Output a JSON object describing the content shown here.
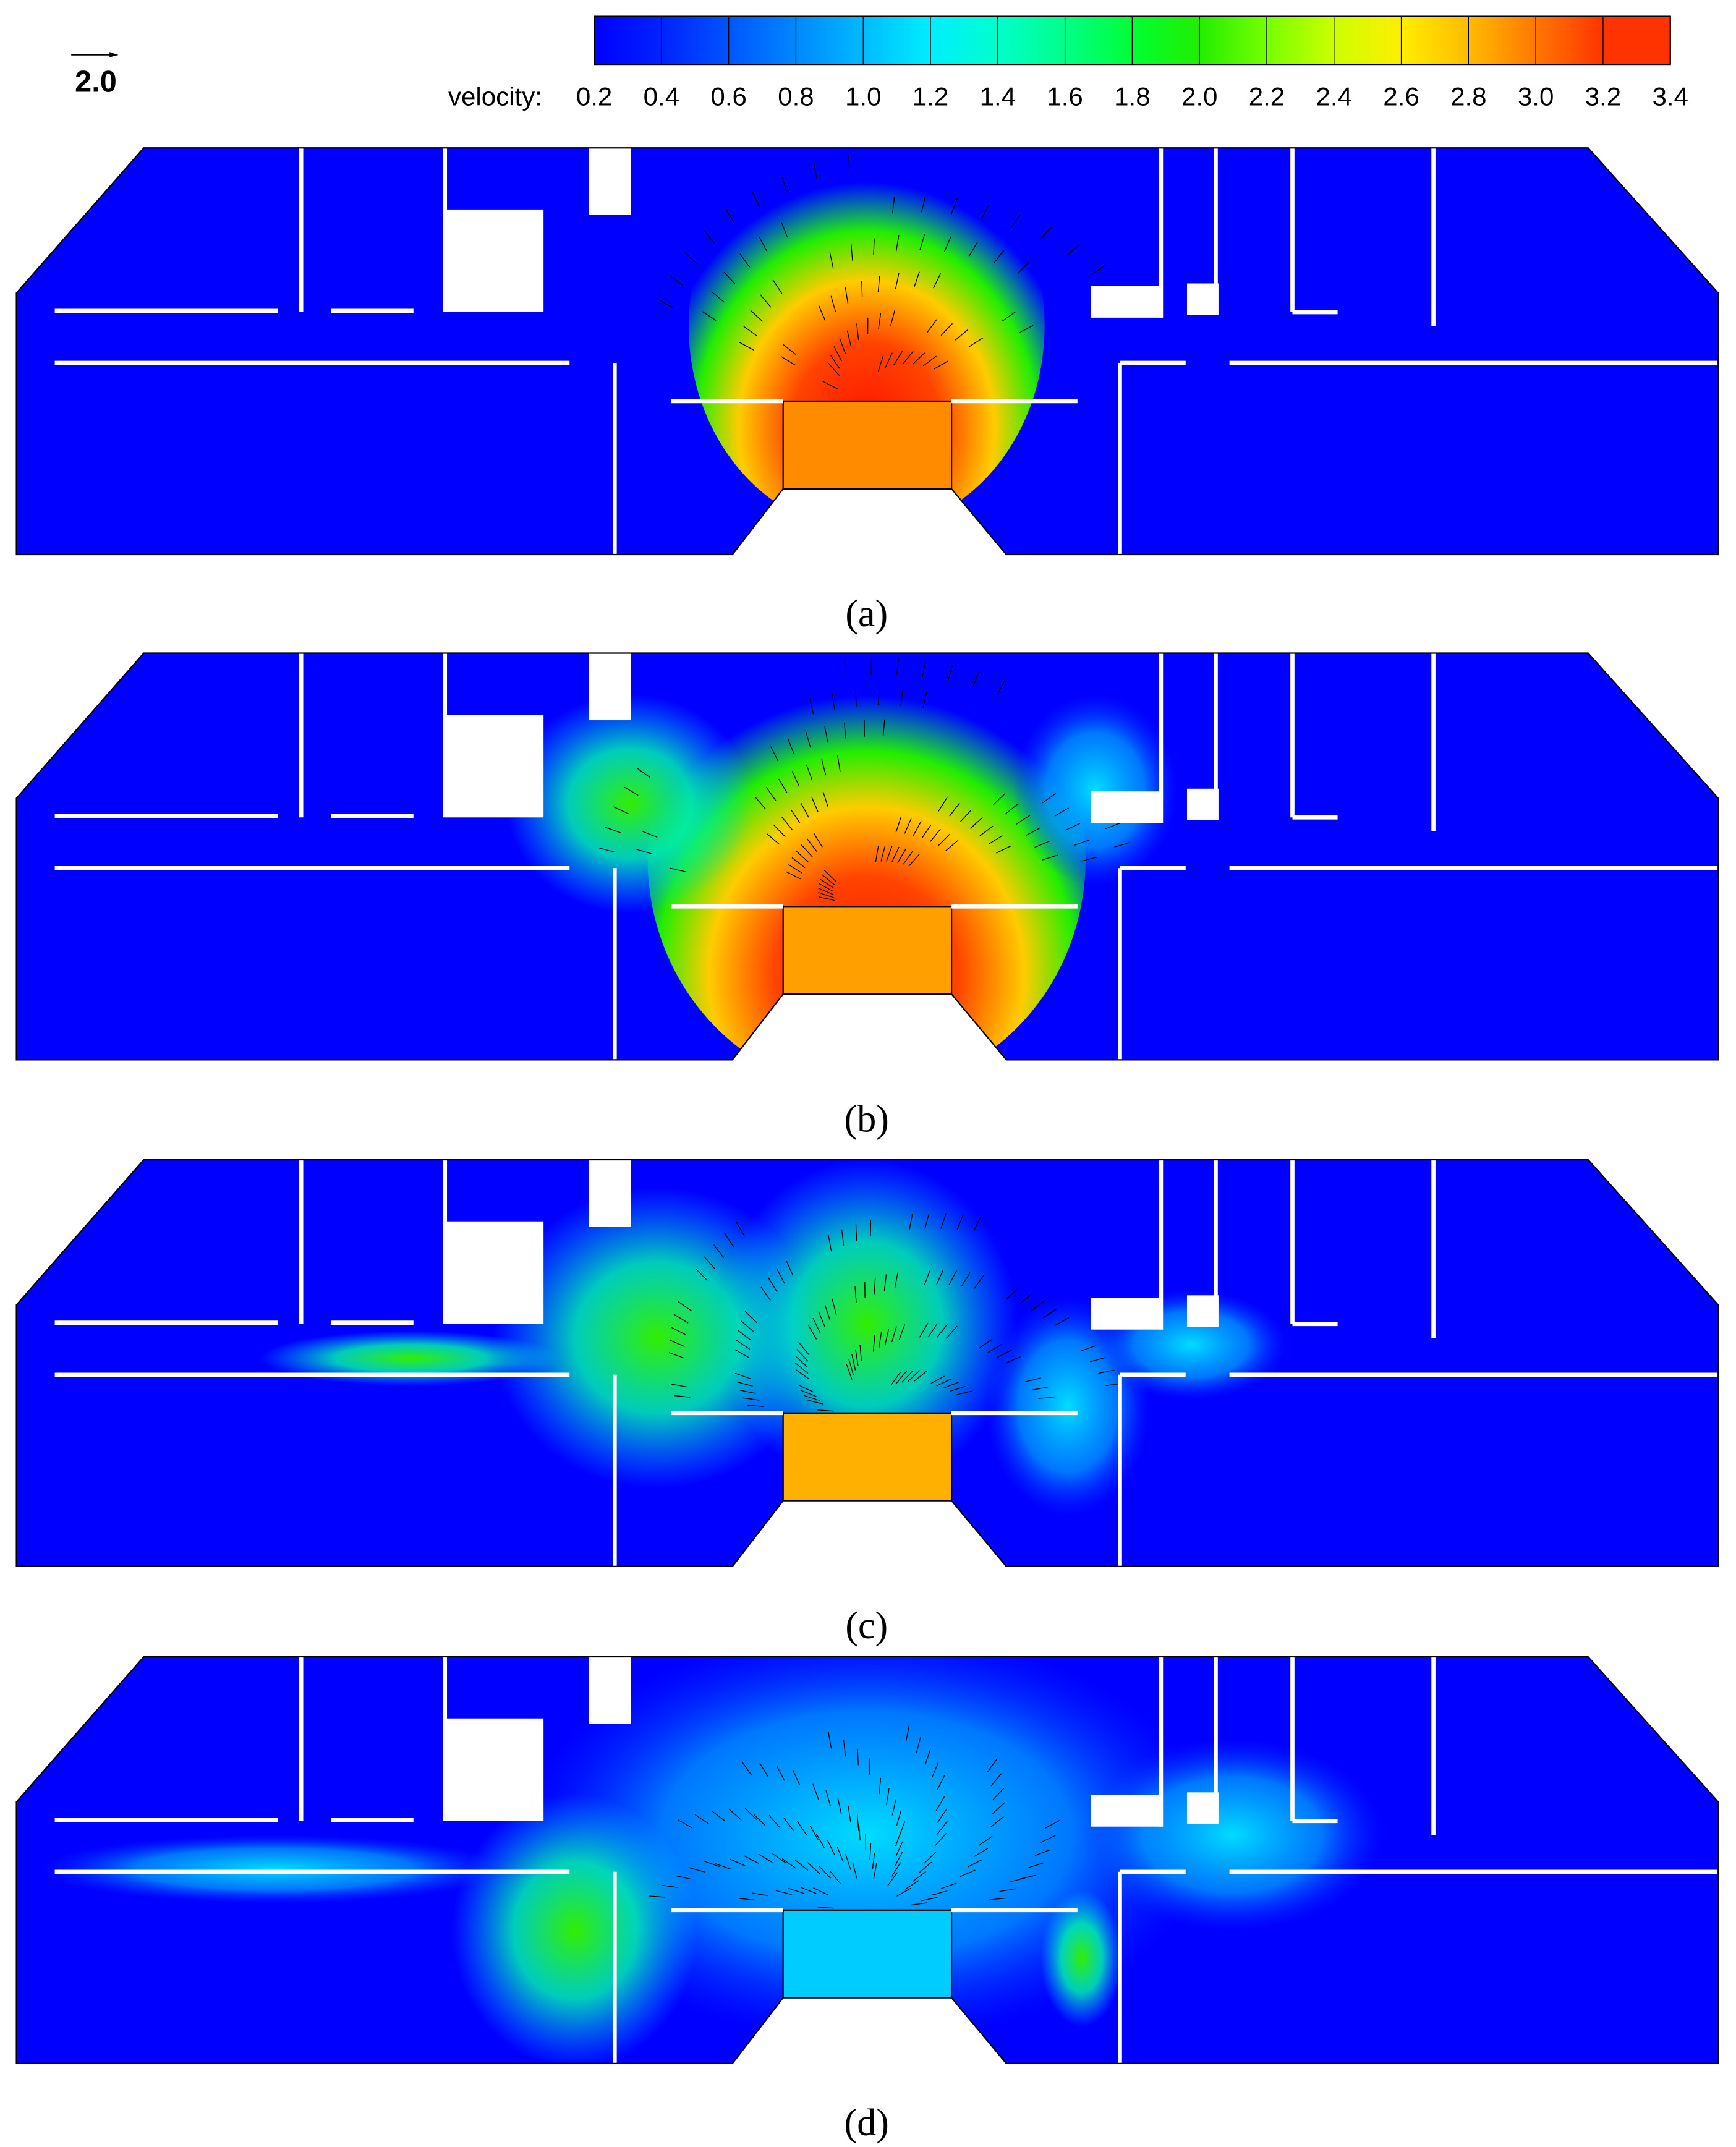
{
  "legend": {
    "title": "velocity:",
    "ticks": [
      "0.2",
      "0.4",
      "0.6",
      "0.8",
      "1.0",
      "1.2",
      "1.4",
      "1.6",
      "1.8",
      "2.0",
      "2.2",
      "2.4",
      "2.6",
      "2.8",
      "3.0",
      "3.2",
      "3.4"
    ],
    "colors": [
      "#0000ff",
      "#0022ff",
      "#0055ff",
      "#0088ff",
      "#00bbff",
      "#00eeff",
      "#00ffcc",
      "#00ff88",
      "#00ff33",
      "#22ee00",
      "#77ff00",
      "#ccff00",
      "#ffee00",
      "#ffbb00",
      "#ff7700",
      "#ff3300"
    ]
  },
  "reference_vector": {
    "label": "2.0"
  },
  "panels": [
    {
      "label": "(a)"
    },
    {
      "label": "(b)"
    },
    {
      "label": "(c)"
    },
    {
      "label": "(d)"
    }
  ]
}
